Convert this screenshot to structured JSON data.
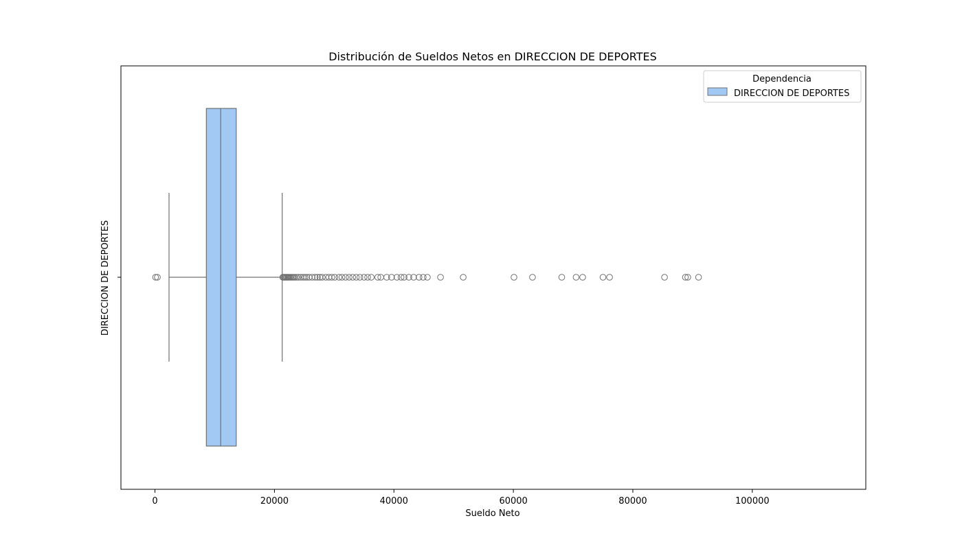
{
  "chart_data": {
    "type": "boxplot",
    "orientation": "horizontal",
    "title": "Distribución de Sueldos Netos en DIRECCION DE DEPORTES",
    "xlabel": "Sueldo Neto",
    "ylabel": "DIRECCION DE DEPORTES",
    "xlim": [
      -5700,
      119000
    ],
    "x_ticks": [
      0,
      20000,
      40000,
      60000,
      80000,
      100000
    ],
    "x_tick_labels": [
      "0",
      "20000",
      "40000",
      "60000",
      "80000",
      "100000"
    ],
    "grid": false,
    "legend": {
      "title": "Dependencia",
      "placement": "top-right",
      "entries": [
        "DIRECCION DE DEPORTES"
      ]
    },
    "series": [
      {
        "name": "DIRECCION DE DEPORTES",
        "color": "#a1c9f4",
        "edge_color": "#707070",
        "whisker_low": 2350,
        "q1": 8600,
        "median": 11000,
        "q3": 13600,
        "whisker_high": 21300,
        "outliers": [
          100,
          400,
          21400,
          21550,
          21700,
          21850,
          22000,
          22150,
          22300,
          22450,
          22600,
          22800,
          23000,
          23200,
          23400,
          23700,
          24000,
          24400,
          24800,
          25100,
          25400,
          25800,
          26300,
          26800,
          27200,
          27600,
          28000,
          28600,
          29100,
          29600,
          30100,
          30800,
          31300,
          31900,
          32500,
          33100,
          33700,
          34300,
          35000,
          35600,
          36200,
          37300,
          37800,
          38800,
          39600,
          40500,
          41200,
          41700,
          42500,
          43300,
          44200,
          44900,
          45600,
          47800,
          51600,
          60100,
          63200,
          68100,
          70500,
          71600,
          75000,
          76100,
          85300,
          88800,
          89200,
          91000
        ]
      }
    ]
  }
}
